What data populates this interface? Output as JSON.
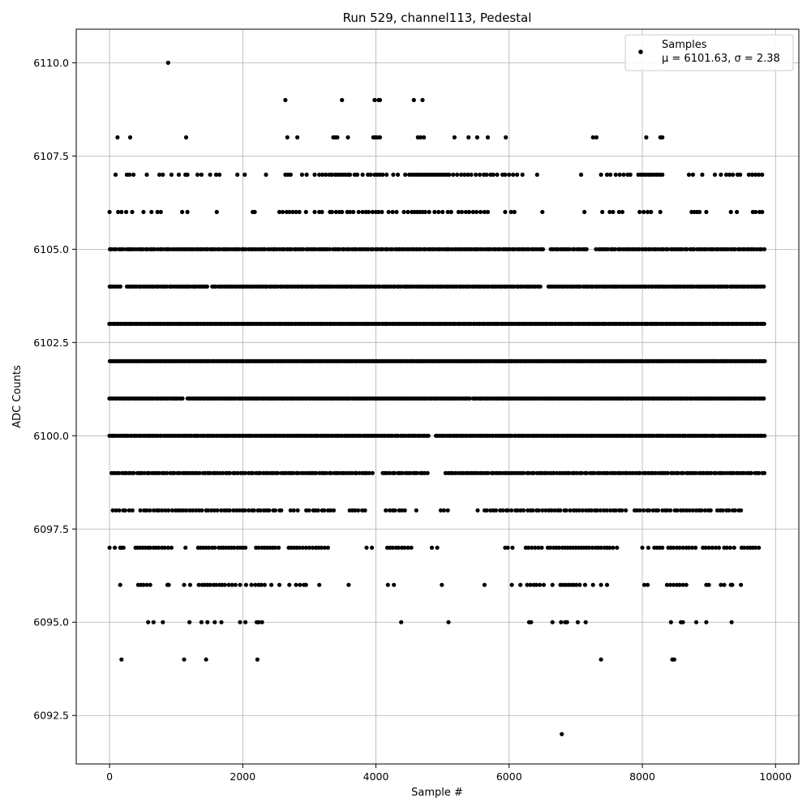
{
  "chart_data": {
    "type": "scatter",
    "title": "Run 529, channel113, Pedestal",
    "xlabel": "Sample #",
    "ylabel": "ADC Counts",
    "xlim": [
      -500,
      10350
    ],
    "ylim": [
      6091.2,
      6110.9
    ],
    "xticks": [
      0,
      2000,
      4000,
      6000,
      8000,
      10000
    ],
    "xtick_labels": [
      "0",
      "2000",
      "4000",
      "6000",
      "8000",
      "10000"
    ],
    "yticks": [
      6092.5,
      6095.0,
      6097.5,
      6100.0,
      6102.5,
      6105.0,
      6107.5,
      6110.0
    ],
    "ytick_labels": [
      "6092.5",
      "6095.0",
      "6097.5",
      "6100.0",
      "6102.5",
      "6105.0",
      "6107.5",
      "6110.0"
    ],
    "grid": true,
    "legend": {
      "position": "top-right",
      "entries": [
        {
          "label": "Samples",
          "sublabel": "μ = 6101.63, σ = 2.38"
        }
      ]
    },
    "marker_color": "#000000",
    "grid_color": "#b0b0b0",
    "series": [
      {
        "name": "Samples",
        "sample_range": [
          0,
          9850
        ],
        "levels": [
          {
            "y": 6110,
            "x": [
              880
            ]
          },
          {
            "y": 6109,
            "x": [
              2640,
              3490,
              3980,
              4040,
              4060,
              4570,
              4700
            ]
          },
          {
            "y": 6108,
            "x": [
              120,
              310,
              1150,
              2670,
              2820,
              3360,
              3390,
              3420,
              3580,
              3960,
              3990,
              4020,
              4060,
              4630,
              4670,
              4720,
              5180,
              5390,
              5520,
              5680,
              5950,
              7260,
              7310,
              8060,
              8270,
              8300
            ]
          },
          {
            "y": 6107,
            "x": [
              90,
              260,
              300,
              360,
              560,
              750,
              800,
              930,
              1040,
              1140,
              1170,
              1320,
              1380,
              1510,
              1600,
              1650,
              1920,
              2030,
              2350,
              2640,
              2680,
              2720,
              2890,
              2960,
              3080,
              3150,
              3200,
              3250,
              3300,
              3340,
              3390,
              3420,
              3460,
              3500,
              3540,
              3580,
              3610,
              3680,
              3720,
              3800,
              3880,
              3920,
              3980,
              4020,
              4060,
              4100,
              4160,
              4260,
              4330,
              4440,
              4500,
              4540,
              4580,
              4620,
              4660,
              4700,
              4740,
              4780,
              4820,
              4860,
              4900,
              4940,
              4980,
              5020,
              5060,
              5100,
              5160,
              5220,
              5280,
              5330,
              5380,
              5430,
              5500,
              5560,
              5620,
              5660,
              5720,
              5760,
              5820,
              5900,
              5940,
              6000,
              6060,
              6120,
              6200,
              6420,
              7080,
              7380,
              7470,
              7520,
              7600,
              7660,
              7720,
              7780,
              7820,
              7940,
              7980,
              8020,
              8060,
              8100,
              8140,
              8180,
              8220,
              8260,
              8300,
              8700,
              8760,
              8900,
              9090,
              9180,
              9260,
              9310,
              9360,
              9430,
              9470,
              9600,
              9650,
              9700,
              9750,
              9800
            ]
          },
          {
            "y": 6106,
            "x": [
              0,
              130,
              180,
              250,
              340,
              510,
              630,
              720,
              770,
              1090,
              1170,
              1610,
              2150,
              2180,
              2550,
              2600,
              2660,
              2700,
              2750,
              2800,
              2850,
              2950,
              3080,
              3150,
              3190,
              3310,
              3340,
              3400,
              3450,
              3490,
              3570,
              3610,
              3660,
              3740,
              3800,
              3850,
              3890,
              3950,
              4000,
              4040,
              4090,
              4190,
              4250,
              4310,
              4420,
              4480,
              4540,
              4580,
              4620,
              4660,
              4700,
              4740,
              4800,
              4880,
              4940,
              5000,
              5080,
              5130,
              5240,
              5290,
              5350,
              5400,
              5460,
              5510,
              5570,
              5630,
              5680,
              5940,
              6030,
              6080,
              6500,
              7130,
              7400,
              7510,
              7560,
              7650,
              7700,
              7960,
              8020,
              8080,
              8130,
              8270,
              8740,
              8780,
              8820,
              8860,
              8960,
              9330,
              9420,
              9660,
              9700,
              9760,
              9800
            ]
          },
          {
            "y": 6105,
            "dense": true,
            "from": 0,
            "to": 9840,
            "step": 36,
            "gaps": [
              [
                6530,
                6600
              ],
              [
                7200,
                7300
              ]
            ]
          },
          {
            "y": 6104,
            "dense": true,
            "from": 0,
            "to": 9840,
            "step": 32,
            "gaps": [
              [
                180,
                260
              ],
              [
                1500,
                1540
              ],
              [
                6480,
                6560
              ]
            ]
          },
          {
            "y": 6103,
            "dense": true,
            "from": 0,
            "to": 9840,
            "step": 26,
            "gaps": []
          },
          {
            "y": 6102,
            "dense": true,
            "from": 0,
            "to": 9840,
            "step": 24,
            "gaps": []
          },
          {
            "y": 6101,
            "dense": true,
            "from": 0,
            "to": 9840,
            "step": 26,
            "gaps": [
              [
                1110,
                1150
              ],
              [
                5420,
                5460
              ]
            ]
          },
          {
            "y": 6100,
            "dense": true,
            "from": 0,
            "to": 9840,
            "step": 28,
            "gaps": [
              [
                4800,
                4880
              ]
            ]
          },
          {
            "y": 6099,
            "dense": true,
            "from": 30,
            "to": 9840,
            "step": 38,
            "gaps": [
              [
                3960,
                4080
              ],
              [
                4800,
                5010
              ]
            ]
          },
          {
            "y": 6098,
            "dense": true,
            "from": 60,
            "to": 9840,
            "step": 46,
            "gaps": [
              [
                370,
                440
              ],
              [
                2620,
                2680
              ],
              [
                2860,
                2930
              ],
              [
                3390,
                3560
              ],
              [
                3870,
                4120
              ],
              [
                4460,
                4560
              ],
              [
                4640,
                4960
              ],
              [
                5130,
                5500
              ],
              [
                5550,
                5620
              ],
              [
                7790,
                7850
              ],
              [
                9040,
                9090
              ],
              [
                9510,
                9830
              ]
            ]
          },
          {
            "y": 6097,
            "x": [
              0,
              80,
              160,
              180,
              210,
              390,
              420,
              460,
              500,
              540,
              580,
              610,
              660,
              700,
              740,
              790,
              830,
              880,
              930,
              1140,
              1330,
              1370,
              1410,
              1450,
              1490,
              1540,
              1580,
              1640,
              1680,
              1710,
              1750,
              1790,
              1830,
              1870,
              1920,
              1960,
              2000,
              2040,
              2200,
              2240,
              2290,
              2330,
              2370,
              2410,
              2450,
              2490,
              2540,
              2690,
              2730,
              2770,
              2810,
              2850,
              2900,
              2950,
              3000,
              3050,
              3100,
              3140,
              3180,
              3230,
              3280,
              3860,
              3940,
              4170,
              4210,
              4250,
              4300,
              4340,
              4390,
              4430,
              4480,
              4530,
              4840,
              4920,
              5940,
              5980,
              6050,
              6250,
              6290,
              6340,
              6390,
              6440,
              6490,
              6580,
              6620,
              6670,
              6710,
              6750,
              6800,
              6840,
              6880,
              6920,
              6960,
              7000,
              7040,
              7080,
              7120,
              7160,
              7200,
              7250,
              7300,
              7340,
              7380,
              7430,
              7470,
              7510,
              7560,
              7620,
              8000,
              8090,
              8180,
              8220,
              8260,
              8300,
              8390,
              8430,
              8470,
              8520,
              8560,
              8610,
              8660,
              8700,
              8750,
              8800,
              8910,
              8950,
              9000,
              9050,
              9100,
              9150,
              9230,
              9270,
              9320,
              9380,
              9490,
              9530,
              9580,
              9620,
              9660,
              9700,
              9750
            ]
          },
          {
            "y": 6096,
            "x": [
              160,
              430,
              470,
              510,
              560,
              610,
              870,
              890,
              1120,
              1210,
              1340,
              1390,
              1430,
              1470,
              1510,
              1560,
              1600,
              1650,
              1690,
              1730,
              1790,
              1840,
              1890,
              1960,
              2050,
              2130,
              2190,
              2240,
              2280,
              2330,
              2430,
              2550,
              2700,
              2800,
              2860,
              2920,
              2950,
              3150,
              3590,
              4180,
              4270,
              4990,
              5630,
              6040,
              6170,
              6270,
              6320,
              6370,
              6410,
              6460,
              6520,
              6650,
              6770,
              6810,
              6850,
              6890,
              6930,
              6970,
              7010,
              7060,
              7140,
              7260,
              7380,
              7470,
              8030,
              8080,
              8370,
              8420,
              8470,
              8520,
              8560,
              8610,
              8660,
              8960,
              9000,
              9180,
              9230,
              9330,
              9350,
              9480
            ]
          },
          {
            "y": 6095,
            "x": [
              580,
              660,
              800,
              1200,
              1380,
              1470,
              1580,
              1680,
              1960,
              2040,
              2210,
              2240,
              2290,
              4380,
              5090,
              6300,
              6330,
              6650,
              6780,
              6840,
              6870,
              7030,
              7150,
              8430,
              8580,
              8610,
              8810,
              8960,
              9340
            ]
          },
          {
            "y": 6094,
            "x": [
              180,
              1120,
              1450,
              2220,
              7380,
              8450,
              8480
            ]
          },
          {
            "y": 6092,
            "x": [
              6790
            ]
          }
        ]
      }
    ]
  }
}
